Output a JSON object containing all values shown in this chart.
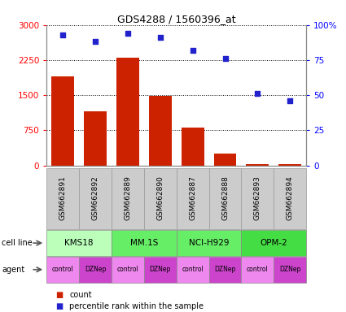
{
  "title": "GDS4288 / 1560396_at",
  "samples": [
    "GSM662891",
    "GSM662892",
    "GSM662889",
    "GSM662890",
    "GSM662887",
    "GSM662888",
    "GSM662893",
    "GSM662894"
  ],
  "counts": [
    1900,
    1150,
    2300,
    1480,
    800,
    250,
    25,
    20
  ],
  "percentiles": [
    93,
    88,
    94,
    91,
    82,
    76,
    51,
    46
  ],
  "cell_lines": [
    {
      "name": "KMS18",
      "start": 0,
      "end": 2,
      "color": "#bbffbb"
    },
    {
      "name": "MM.1S",
      "start": 2,
      "end": 4,
      "color": "#66ee66"
    },
    {
      "name": "NCI-H929",
      "start": 4,
      "end": 6,
      "color": "#66ee66"
    },
    {
      "name": "OPM-2",
      "start": 6,
      "end": 8,
      "color": "#44dd44"
    }
  ],
  "agents": [
    "control",
    "DZNep",
    "control",
    "DZNep",
    "control",
    "DZNep",
    "control",
    "DZNep"
  ],
  "control_color": "#ee88ee",
  "dznep_color": "#cc44cc",
  "bar_color": "#cc2200",
  "dot_color": "#2222cc",
  "ylim_left": [
    0,
    3000
  ],
  "ylim_right": [
    0,
    100
  ],
  "yticks_left": [
    0,
    750,
    1500,
    2250,
    3000
  ],
  "yticks_right": [
    0,
    25,
    50,
    75,
    100
  ],
  "ytick_labels_left": [
    "0",
    "750",
    "1500",
    "2250",
    "3000"
  ],
  "ytick_labels_right": [
    "0",
    "25",
    "50",
    "75",
    "100%"
  ],
  "background_color": "#ffffff",
  "label_count": "count",
  "label_percentile": "percentile rank within the sample",
  "cell_line_label": "cell line",
  "agent_label": "agent"
}
